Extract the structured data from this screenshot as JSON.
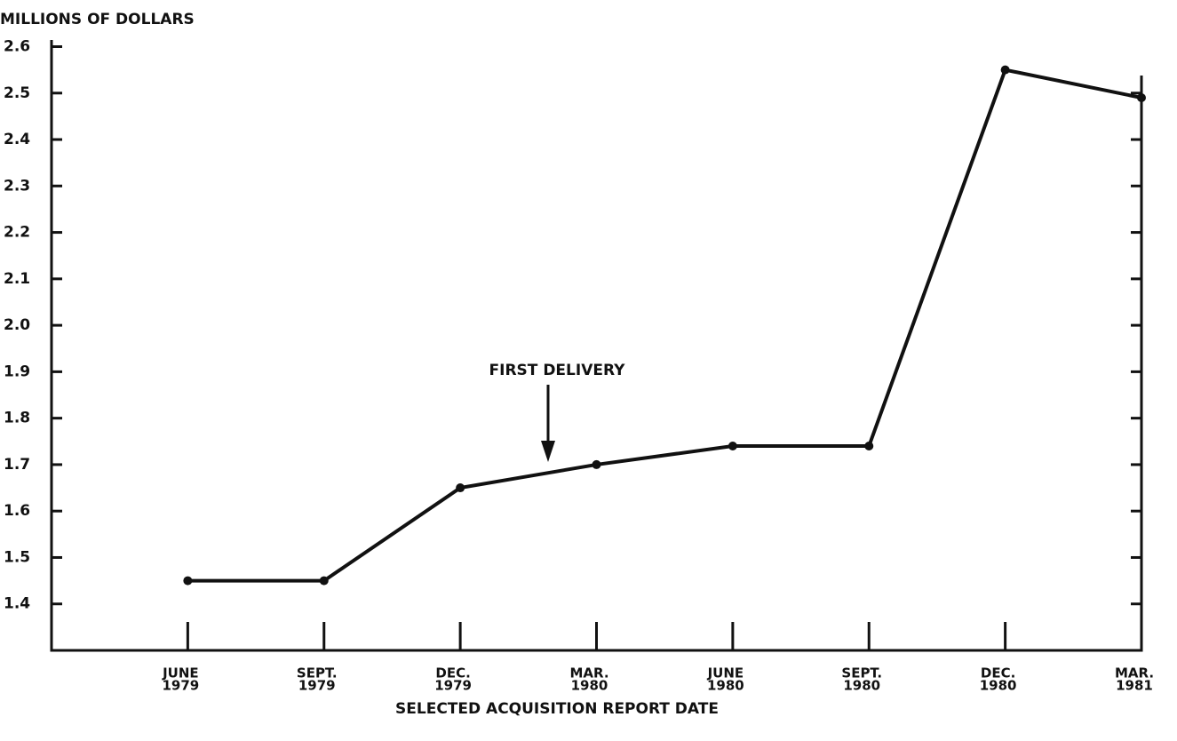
{
  "chart_data": {
    "type": "line",
    "title": "MILLIONS OF DOLLARS",
    "x_label": "SELECTED ACQUISITION REPORT DATE",
    "annotation": "FIRST DELIVERY",
    "categories": [
      [
        "JUNE",
        "1979"
      ],
      [
        "SEPT.",
        "1979"
      ],
      [
        "DEC.",
        "1979"
      ],
      [
        "MAR.",
        "1980"
      ],
      [
        "JUNE",
        "1980"
      ],
      [
        "SEPT.",
        "1980"
      ],
      [
        "DEC.",
        "1980"
      ],
      [
        "MAR.",
        "1981"
      ]
    ],
    "values": [
      1.45,
      1.45,
      1.65,
      1.7,
      1.74,
      1.74,
      2.55,
      2.49
    ],
    "color": "#111111",
    "ylim": [
      1.3,
      2.6
    ],
    "yticks": [
      1.4,
      1.5,
      1.6,
      1.7,
      1.8,
      1.9,
      {
        "value": 2,
        "label": "2.0"
      },
      2.1,
      2.2,
      2.3,
      2.4,
      2.5,
      2.6
    ]
  }
}
